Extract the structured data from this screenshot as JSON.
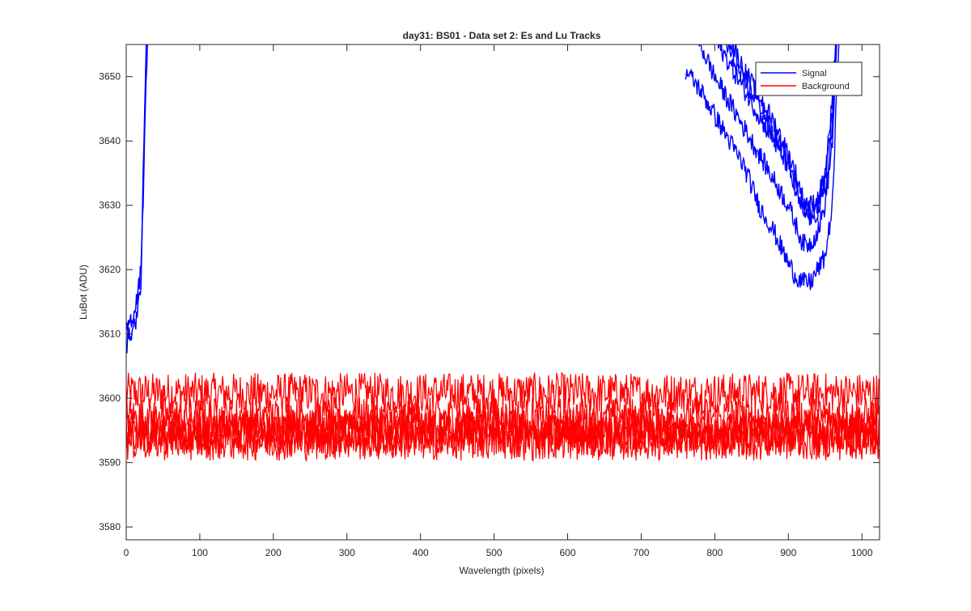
{
  "chart_data": {
    "type": "line",
    "title": "day31: BS01 - Data set 2: Es and Lu Tracks",
    "xlabel": "Wavelength (pixels)",
    "ylabel": "LuBot (ADU)",
    "xlim": [
      0,
      1024
    ],
    "ylim": [
      3578,
      3655
    ],
    "xticks": [
      0,
      100,
      200,
      300,
      400,
      500,
      600,
      700,
      800,
      900,
      1000
    ],
    "yticks": [
      3580,
      3590,
      3600,
      3610,
      3620,
      3630,
      3640,
      3650
    ],
    "grid": false,
    "legend": {
      "position": "top-right",
      "entries": [
        "Signal",
        "Background"
      ]
    },
    "colors": {
      "signal": "#0000ff",
      "background": "#ff0000",
      "axes": "#262626"
    },
    "series": [
      {
        "name": "Signal",
        "color": "#0000ff",
        "tracks": [
          {
            "x": [
              0,
              5,
              10,
              15,
              20,
              25,
              30
            ],
            "y": [
              3608,
              3610,
              3611,
              3613,
              3618,
              3640,
              3660
            ]
          },
          {
            "x": [
              0,
              5,
              10,
              15,
              20,
              25,
              30
            ],
            "y": [
              3610,
              3612,
              3613,
              3616,
              3620,
              3645,
              3665
            ]
          }
        ],
        "right_tracks": [
          {
            "x": [
              760,
              780,
              800,
              820,
              840,
              860,
              880,
              900,
              910,
              920,
              930,
              940,
              950,
              960,
              965,
              970
            ],
            "y": [
              3651,
              3648,
              3644,
              3640,
              3636,
              3630,
              3626,
              3621,
              3619,
              3618,
              3618,
              3620,
              3622,
              3630,
              3645,
              3660
            ]
          },
          {
            "x": [
              770,
              780,
              800,
              820,
              840,
              860,
              880,
              900,
              910,
              920,
              930,
              940,
              950,
              960,
              965,
              970
            ],
            "y": [
              3658,
              3655,
              3650,
              3646,
              3642,
              3638,
              3634,
              3630,
              3627,
              3624,
              3624,
              3626,
              3630,
              3640,
              3652,
              3665
            ]
          },
          {
            "x": [
              780,
              800,
              820,
              840,
              860,
              880,
              900,
              910,
              920,
              930,
              940,
              950,
              960,
              965,
              970
            ],
            "y": [
              3660,
              3656,
              3652,
              3648,
              3644,
              3640,
              3636,
              3632,
              3629,
              3628,
              3629,
              3632,
              3642,
              3654,
              3665
            ]
          },
          {
            "x": [
              790,
              800,
              820,
              840,
              860,
              880,
              900,
              910,
              920,
              930,
              940,
              950,
              960,
              965,
              970
            ],
            "y": [
              3660,
              3658,
              3654,
              3649,
              3646,
              3641,
              3637,
              3633,
              3630,
              3629,
              3630,
              3634,
              3644,
              3656,
              3665
            ]
          },
          {
            "x": [
              800,
              820,
              840,
              860,
              880,
              900,
              910,
              920,
              930,
              940,
              950,
              960,
              965,
              970
            ],
            "y": [
              3660,
              3656,
              3651,
              3647,
              3643,
              3638,
              3635,
              3631,
              3630,
              3631,
              3635,
              3646,
              3658,
              3665
            ]
          }
        ]
      },
      {
        "name": "Background",
        "color": "#ff0000",
        "tracks": [
          {
            "x": [
              0,
              1024
            ],
            "y": [
              3600.8,
              3600.8
            ]
          },
          {
            "x": [
              0,
              1024
            ],
            "y": [
              3597.0,
              3597.0
            ]
          },
          {
            "x": [
              0,
              1024
            ],
            "y": [
              3595.2,
              3595.2
            ]
          },
          {
            "x": [
              0,
              1024
            ],
            "y": [
              3594.3,
              3594.3
            ]
          },
          {
            "x": [
              0,
              1024
            ],
            "y": [
              3593.5,
              3593.5
            ]
          }
        ]
      }
    ]
  }
}
